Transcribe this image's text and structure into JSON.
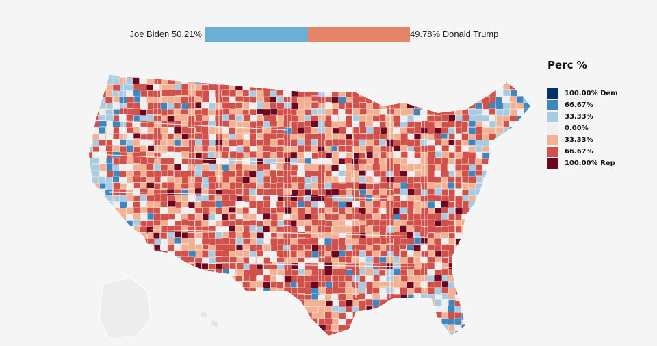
{
  "summary": {
    "left_label": "Joe Biden 50.21%",
    "right_label": "49.78% Donald Trump",
    "dem_share": 50.21,
    "rep_share": 49.78,
    "dem_color": "#6baed6",
    "rep_color": "#e6846a"
  },
  "legend": {
    "title": "Perc %",
    "items": [
      {
        "label": "100.00% Dem",
        "color": "#08306b"
      },
      {
        "label": "66.67%",
        "color": "#3f86bf"
      },
      {
        "label": "33.33%",
        "color": "#a7cbe3"
      },
      {
        "label": "0.00%",
        "color": "#efefef"
      },
      {
        "label": "33.33%",
        "color": "#f3b194"
      },
      {
        "label": "66.67%",
        "color": "#d2504a"
      },
      {
        "label": "100.00% Rep",
        "color": "#6b0720"
      }
    ]
  },
  "map": {
    "name": "united-states-county-vote-map",
    "background_region_color": "#ececec"
  }
}
